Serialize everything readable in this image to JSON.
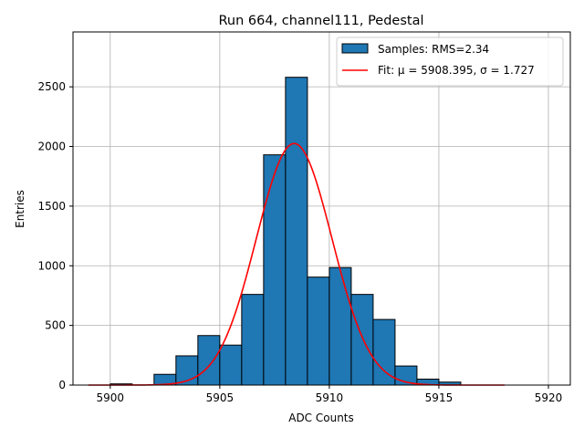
{
  "chart_data": {
    "type": "bar",
    "title": "Run 664, channel111, Pedestal",
    "xlabel": "ADC Counts",
    "ylabel": "Entries",
    "xlim": [
      5898.3,
      5921.0
    ],
    "ylim": [
      0,
      2960
    ],
    "xticks": [
      5900,
      5905,
      5910,
      5915,
      5920
    ],
    "yticks": [
      0,
      500,
      1000,
      1500,
      2000,
      2500
    ],
    "grid": true,
    "legend_position": "top-right",
    "colors": {
      "bar": "#1f77b4",
      "bar_edge": "#000000",
      "fit": "#ff0000"
    },
    "histogram": {
      "name": "Samples: RMS=2.34",
      "bin_edges": [
        5900,
        5901,
        5902,
        5903,
        5904,
        5905,
        5906,
        5907,
        5908,
        5909,
        5910,
        5911,
        5912,
        5913,
        5914,
        5915,
        5916
      ],
      "counts": [
        10,
        0,
        90,
        245,
        415,
        335,
        760,
        1930,
        2580,
        905,
        985,
        760,
        550,
        160,
        50,
        25
      ]
    },
    "fit": {
      "name": "Fit: μ = 5908.395, σ = 1.727",
      "mu": 5908.395,
      "sigma": 1.727,
      "amplitude": 2025,
      "x_range": [
        5899,
        5918
      ]
    }
  }
}
